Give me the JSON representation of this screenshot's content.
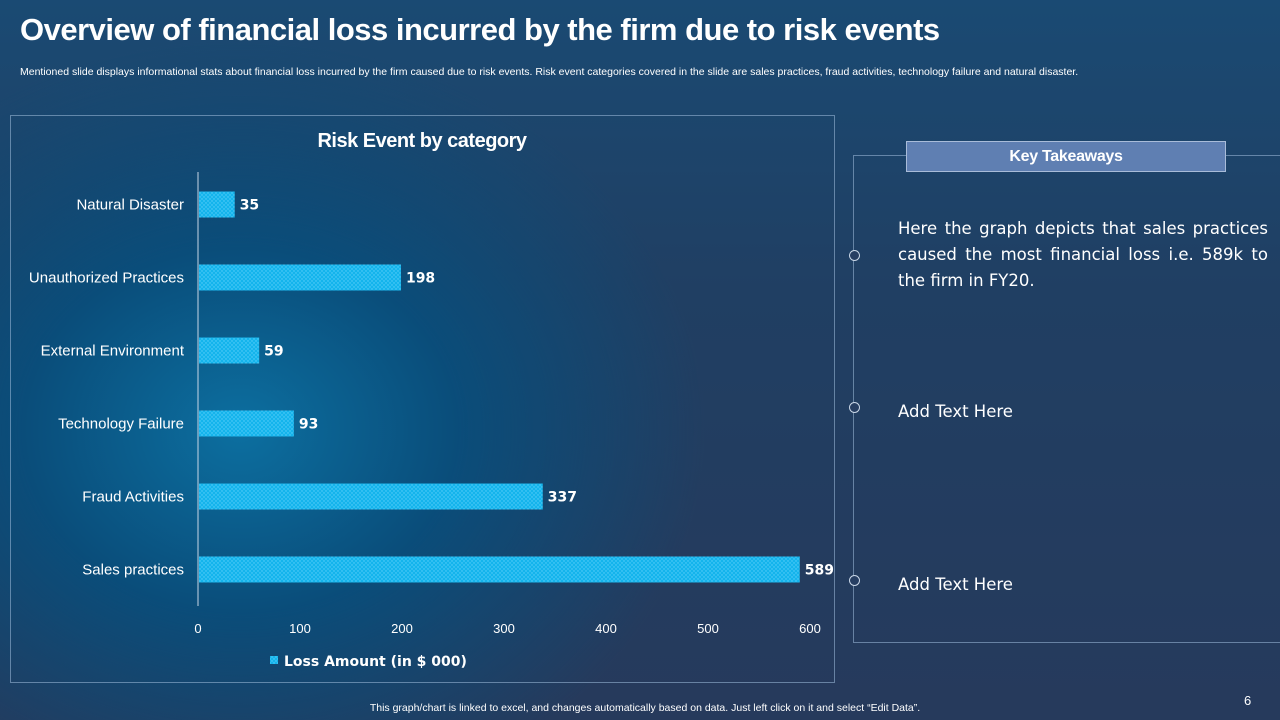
{
  "header": {
    "title": "Overview of financial loss incurred by the firm due to risk events",
    "subtitle": "Mentioned slide displays informational stats about financial loss incurred by the firm caused due to risk events. Risk event categories covered in the slide are sales practices, fraud activities, technology failure and natural disaster."
  },
  "chart_data": {
    "type": "bar",
    "orientation": "horizontal",
    "title": "Risk Event by category",
    "categories": [
      "Natural Disaster",
      "Unauthorized Practices",
      "External Environment",
      "Technology Failure",
      "Fraud Activities",
      "Sales practices"
    ],
    "series": [
      {
        "name": "Loss Amount (in $ 000)",
        "values": [
          35,
          198,
          59,
          93,
          337,
          589
        ]
      }
    ],
    "xlim": [
      0,
      600
    ],
    "x_ticks": [
      0,
      100,
      200,
      300,
      400,
      500,
      600
    ],
    "grid": false,
    "legend": "bottom",
    "bar_color": "#14b4ec"
  },
  "takeaways": {
    "header": "Key Takeaways",
    "points": [
      "Here the graph depicts that sales practices caused the most financial loss i.e. 589k to the firm in FY20.",
      "Add Text Here",
      "Add Text Here"
    ]
  },
  "footer": {
    "note": "This graph/chart is linked to excel, and changes automatically based on data. Just left click on it and select “Edit Data”.",
    "page_number": "6"
  }
}
